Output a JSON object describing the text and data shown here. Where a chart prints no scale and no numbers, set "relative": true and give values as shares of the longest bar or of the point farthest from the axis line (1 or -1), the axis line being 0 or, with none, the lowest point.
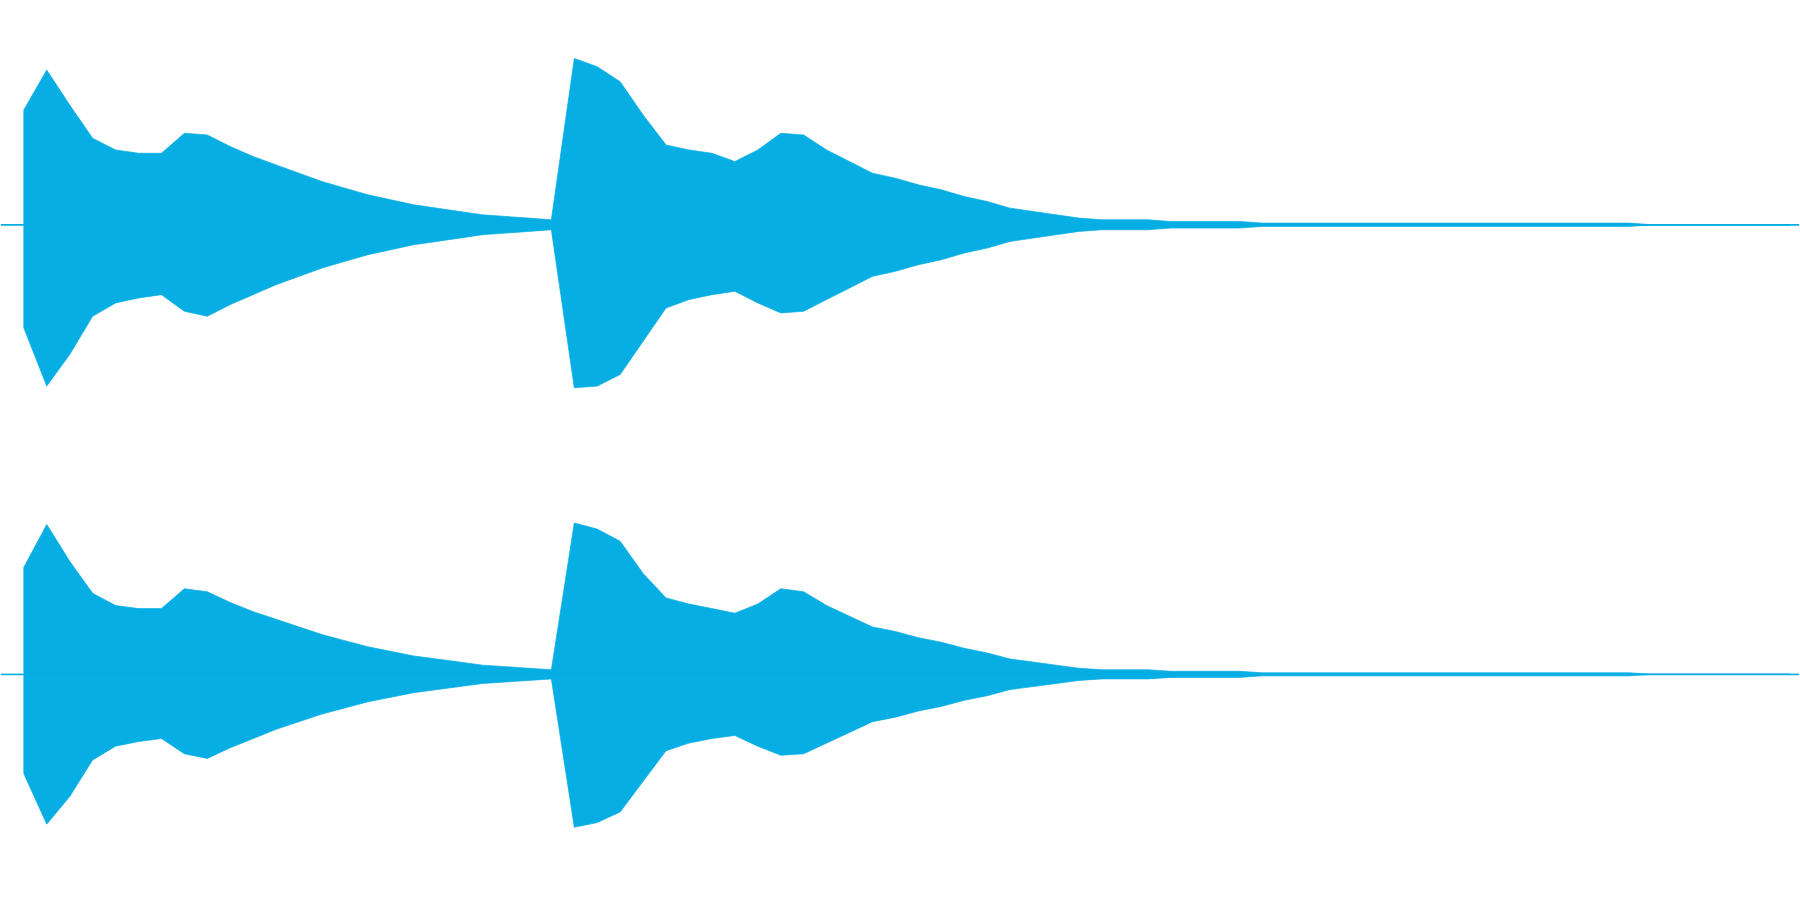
{
  "chart_data": [
    {
      "type": "area",
      "relative": true,
      "ref_lines": [
        {
          "axis": "y",
          "value": 0,
          "color": "#06aee3"
        }
      ],
      "categories": [
        null,
        null,
        null,
        null,
        null,
        null,
        null,
        null,
        null,
        null,
        null,
        null,
        null,
        null,
        null,
        null,
        null,
        null,
        null,
        null,
        null,
        null,
        null,
        null,
        null,
        null,
        null,
        null,
        null,
        null,
        null,
        null,
        null,
        null,
        null,
        null,
        null,
        null,
        null,
        null,
        null,
        null,
        null,
        null,
        null,
        null,
        null,
        null,
        null,
        null,
        null,
        null,
        null,
        null,
        null,
        null,
        null,
        null,
        null,
        null,
        null,
        null,
        null,
        null,
        null,
        null,
        null,
        null,
        null,
        null,
        null,
        null,
        null,
        null,
        null,
        null,
        null,
        null
      ],
      "series": [
        {
          "color": "#06aee3",
          "values": [
            0.69,
            0.93,
            0.72,
            0.52,
            0.45,
            0.43,
            0.43,
            0.55,
            0.54,
            0.47,
            0.41,
            0.36,
            0.31,
            0.26,
            0.22,
            0.18,
            0.15,
            0.12,
            0.1,
            0.08,
            0.06,
            0.05,
            0.04,
            0.03,
            1.0,
            0.95,
            0.86,
            0.66,
            0.48,
            0.45,
            0.43,
            0.38,
            0.45,
            0.55,
            0.54,
            0.45,
            0.38,
            0.31,
            0.28,
            0.24,
            0.21,
            0.17,
            0.14,
            0.1,
            0.08,
            0.06,
            0.04,
            0.03,
            0.03,
            0.03,
            0.02,
            0.02,
            0.02,
            0.02,
            0.01,
            0.01,
            0.01,
            0.01,
            0.01,
            0.01,
            0.01,
            0.01,
            0.01,
            0.01,
            0.01,
            0.01,
            0.01,
            0.01,
            0.01,
            0.01,
            0.01,
            0,
            0,
            0,
            0,
            0,
            0,
            0
          ]
        },
        {
          "color": "#06aee3",
          "values": [
            -0.62,
            -0.97,
            -0.78,
            -0.55,
            -0.47,
            -0.44,
            -0.42,
            -0.52,
            -0.55,
            -0.48,
            -0.42,
            -0.36,
            -0.31,
            -0.26,
            -0.22,
            -0.18,
            -0.15,
            -0.12,
            -0.1,
            -0.08,
            -0.06,
            -0.05,
            -0.04,
            -0.03,
            -0.98,
            -0.97,
            -0.9,
            -0.7,
            -0.5,
            -0.45,
            -0.42,
            -0.4,
            -0.47,
            -0.53,
            -0.52,
            -0.45,
            -0.38,
            -0.31,
            -0.28,
            -0.24,
            -0.21,
            -0.17,
            -0.14,
            -0.1,
            -0.08,
            -0.06,
            -0.04,
            -0.03,
            -0.03,
            -0.03,
            -0.02,
            -0.02,
            -0.02,
            -0.02,
            -0.01,
            -0.01,
            -0.01,
            -0.01,
            -0.01,
            -0.01,
            -0.01,
            -0.01,
            -0.01,
            -0.01,
            -0.01,
            -0.01,
            -0.01,
            -0.01,
            -0.01,
            -0.01,
            -0.01,
            0,
            0,
            0,
            0,
            0,
            0,
            0
          ]
        }
      ]
    },
    {
      "type": "area",
      "relative": true,
      "ref_lines": [
        {
          "axis": "y",
          "value": 0,
          "color": "#06aee3"
        }
      ],
      "categories": [
        null,
        null,
        null,
        null,
        null,
        null,
        null,
        null,
        null,
        null,
        null,
        null,
        null,
        null,
        null,
        null,
        null,
        null,
        null,
        null,
        null,
        null,
        null,
        null,
        null,
        null,
        null,
        null,
        null,
        null,
        null,
        null,
        null,
        null,
        null,
        null,
        null,
        null,
        null,
        null,
        null,
        null,
        null,
        null,
        null,
        null,
        null,
        null,
        null,
        null,
        null,
        null,
        null,
        null,
        null,
        null,
        null,
        null,
        null,
        null,
        null,
        null,
        null,
        null,
        null,
        null,
        null,
        null,
        null,
        null,
        null,
        null,
        null,
        null,
        null,
        null,
        null,
        null
      ],
      "series": [
        {
          "color": "#06aee3",
          "values": [
            0.7,
            0.98,
            0.74,
            0.53,
            0.45,
            0.43,
            0.43,
            0.56,
            0.54,
            0.47,
            0.41,
            0.36,
            0.31,
            0.26,
            0.22,
            0.18,
            0.15,
            0.12,
            0.1,
            0.08,
            0.06,
            0.05,
            0.04,
            0.03,
            0.99,
            0.95,
            0.87,
            0.66,
            0.5,
            0.46,
            0.43,
            0.4,
            0.46,
            0.56,
            0.54,
            0.45,
            0.38,
            0.31,
            0.28,
            0.24,
            0.21,
            0.17,
            0.14,
            0.1,
            0.08,
            0.06,
            0.04,
            0.03,
            0.03,
            0.03,
            0.02,
            0.02,
            0.02,
            0.02,
            0.01,
            0.01,
            0.01,
            0.01,
            0.01,
            0.01,
            0.01,
            0.01,
            0.01,
            0.01,
            0.01,
            0.01,
            0.01,
            0.01,
            0.01,
            0.01,
            0.01,
            0,
            0,
            0,
            0,
            0,
            0,
            0
          ]
        },
        {
          "color": "#06aee3",
          "values": [
            -0.65,
            -0.98,
            -0.8,
            -0.56,
            -0.47,
            -0.44,
            -0.42,
            -0.52,
            -0.55,
            -0.48,
            -0.42,
            -0.36,
            -0.31,
            -0.26,
            -0.22,
            -0.18,
            -0.15,
            -0.12,
            -0.1,
            -0.08,
            -0.06,
            -0.05,
            -0.04,
            -0.03,
            -1.0,
            -0.97,
            -0.9,
            -0.7,
            -0.5,
            -0.45,
            -0.42,
            -0.4,
            -0.47,
            -0.53,
            -0.52,
            -0.45,
            -0.38,
            -0.31,
            -0.28,
            -0.24,
            -0.21,
            -0.17,
            -0.14,
            -0.1,
            -0.08,
            -0.06,
            -0.04,
            -0.03,
            -0.03,
            -0.03,
            -0.02,
            -0.02,
            -0.02,
            -0.02,
            -0.01,
            -0.01,
            -0.01,
            -0.01,
            -0.01,
            -0.01,
            -0.01,
            -0.01,
            -0.01,
            -0.01,
            -0.01,
            -0.01,
            -0.01,
            -0.01,
            -0.01,
            -0.01,
            -0.01,
            0,
            0,
            0,
            0,
            0,
            0,
            0
          ]
        }
      ]
    }
  ]
}
